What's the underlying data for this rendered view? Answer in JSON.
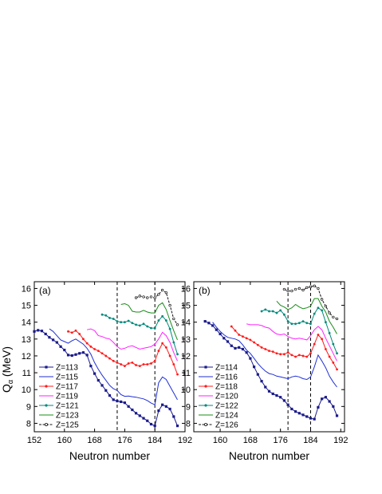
{
  "figure": {
    "ylabel": "Q",
    "ylabel_sub": "α",
    "ylabel_unit": " (MeV)"
  },
  "chart_data": [
    {
      "type": "line",
      "panel_label": "(a)",
      "xlabel": "Neutron number",
      "ylabel": "Qα (MeV)",
      "xlim": [
        152,
        192
      ],
      "ylim": [
        7.5,
        16.4
      ],
      "xticks": [
        152,
        160,
        168,
        176,
        184,
        192
      ],
      "yticks": [
        8,
        9,
        10,
        11,
        12,
        13,
        14,
        15,
        16
      ],
      "vlines": [
        174,
        184
      ],
      "legend_position": "bottom-left",
      "series": [
        {
          "name": "Z=113",
          "color": "#1a1a8c",
          "marker": "square",
          "x": [
            152,
            153,
            154,
            155,
            156,
            157,
            158,
            159,
            160,
            161,
            162,
            163,
            164,
            165,
            166,
            167,
            168,
            169,
            170,
            171,
            172,
            173,
            174,
            175,
            176,
            177,
            178,
            179,
            180,
            181,
            182,
            183,
            184,
            185,
            186,
            187,
            188,
            189,
            190
          ],
          "y": [
            13.45,
            13.52,
            13.48,
            13.3,
            13.1,
            12.95,
            12.8,
            12.55,
            12.35,
            12.05,
            12.02,
            12.08,
            12.15,
            12.2,
            12.05,
            11.4,
            10.95,
            10.55,
            10.25,
            9.95,
            9.65,
            9.4,
            9.32,
            9.28,
            9.22,
            9.0,
            8.8,
            8.6,
            8.45,
            8.3,
            8.15,
            7.95,
            7.85,
            8.75,
            9.1,
            9.0,
            8.85,
            8.4,
            7.85
          ]
        },
        {
          "name": "Z=115",
          "color": "#1f2fd6",
          "x": [
            156,
            157,
            158,
            159,
            160,
            161,
            162,
            163,
            164,
            165,
            166,
            167,
            168,
            169,
            170,
            171,
            172,
            173,
            174,
            175,
            176,
            177,
            178,
            179,
            180,
            181,
            182,
            183,
            184,
            185,
            186,
            187,
            188,
            189,
            190
          ],
          "y": [
            13.6,
            13.45,
            13.2,
            12.95,
            12.85,
            12.75,
            12.9,
            13.0,
            12.85,
            12.7,
            12.45,
            12.1,
            11.6,
            11.2,
            10.85,
            10.55,
            10.25,
            10.05,
            9.95,
            9.7,
            9.6,
            9.62,
            9.58,
            9.55,
            9.5,
            9.45,
            9.35,
            9.2,
            9.1,
            10.4,
            10.75,
            10.6,
            10.2,
            9.8,
            9.4
          ]
        },
        {
          "name": "Z=117",
          "color": "#ff1a1a",
          "marker": "dot",
          "x": [
            161,
            162,
            163,
            164,
            165,
            166,
            167,
            168,
            169,
            170,
            171,
            172,
            173,
            174,
            175,
            176,
            177,
            178,
            179,
            180,
            181,
            182,
            183,
            184,
            185,
            186,
            187,
            188,
            189,
            190
          ],
          "y": [
            13.45,
            13.38,
            13.5,
            13.3,
            13.0,
            12.75,
            12.55,
            12.4,
            12.3,
            12.15,
            12.0,
            11.85,
            11.7,
            11.6,
            11.5,
            11.4,
            11.55,
            11.6,
            11.45,
            11.4,
            11.5,
            11.5,
            11.55,
            11.7,
            12.3,
            12.75,
            12.5,
            12.0,
            11.5,
            10.9
          ]
        },
        {
          "name": "Z=119",
          "color": "#ff22ff",
          "x": [
            166,
            167,
            168,
            169,
            170,
            171,
            172,
            173,
            174,
            175,
            176,
            177,
            178,
            179,
            180,
            181,
            182,
            183,
            184,
            185,
            186,
            187,
            188,
            189,
            190
          ],
          "y": [
            13.55,
            13.6,
            13.5,
            13.2,
            13.15,
            13.05,
            13.0,
            12.8,
            12.55,
            12.4,
            12.45,
            12.55,
            12.6,
            12.5,
            12.4,
            12.45,
            12.5,
            12.55,
            12.7,
            13.0,
            13.4,
            13.2,
            12.8,
            12.2,
            11.7
          ]
        },
        {
          "name": "Z=121",
          "color": "#00897b",
          "marker": "dot",
          "x": [
            170,
            171,
            172,
            173,
            174,
            175,
            176,
            177,
            178,
            179,
            180,
            181,
            182,
            183,
            184,
            185,
            186,
            187,
            188,
            189,
            190
          ],
          "y": [
            14.45,
            14.4,
            14.25,
            14.2,
            14.05,
            14.0,
            14.0,
            14.08,
            13.95,
            13.85,
            13.8,
            13.9,
            13.75,
            13.65,
            13.65,
            14.1,
            14.35,
            14.1,
            13.6,
            12.8,
            12.1
          ]
        },
        {
          "name": "Z=123",
          "color": "#1a8c1a",
          "x": [
            175,
            176,
            177,
            178,
            179,
            180,
            181,
            182,
            183,
            184,
            185,
            186,
            187,
            188,
            189,
            190
          ],
          "y": [
            15.05,
            15.1,
            15.0,
            14.65,
            14.6,
            14.6,
            14.7,
            14.6,
            14.55,
            14.55,
            15.0,
            15.15,
            14.75,
            14.1,
            13.5,
            12.95
          ]
        },
        {
          "name": "Z=125",
          "color": "#111111",
          "marker": "open-dot",
          "x": [
            179,
            180,
            181,
            182,
            183,
            184,
            185,
            186,
            187,
            188,
            189,
            190
          ],
          "y": [
            15.45,
            15.55,
            15.5,
            15.45,
            15.5,
            15.45,
            15.65,
            15.9,
            15.75,
            15.0,
            14.2,
            13.85
          ]
        }
      ]
    },
    {
      "type": "line",
      "panel_label": "(b)",
      "xlabel": "Neutron number",
      "ylabel": "Qα (MeV)",
      "xlim": [
        153,
        193
      ],
      "ylim": [
        7.5,
        16.4
      ],
      "xticks": [
        160,
        168,
        176,
        184,
        192
      ],
      "yticks": [
        8,
        9,
        10,
        11,
        12,
        13,
        14,
        15,
        16
      ],
      "vlines": [
        178,
        184
      ],
      "legend_position": "bottom-left",
      "series": [
        {
          "name": "Z=114",
          "color": "#1a1a8c",
          "marker": "square",
          "x": [
            156,
            157,
            158,
            159,
            160,
            161,
            162,
            163,
            164,
            165,
            166,
            167,
            168,
            169,
            170,
            171,
            172,
            173,
            174,
            175,
            176,
            177,
            178,
            179,
            180,
            181,
            182,
            183,
            184,
            185,
            186,
            187,
            188,
            189,
            190,
            191
          ],
          "y": [
            14.05,
            13.95,
            13.8,
            13.55,
            13.3,
            13.05,
            12.85,
            12.6,
            12.45,
            12.5,
            12.4,
            12.2,
            11.85,
            11.35,
            10.9,
            10.5,
            10.15,
            9.9,
            9.75,
            9.65,
            9.55,
            9.35,
            9.1,
            8.85,
            8.7,
            8.6,
            8.5,
            8.4,
            8.3,
            8.25,
            8.95,
            9.45,
            9.55,
            9.3,
            9.0,
            8.45
          ]
        },
        {
          "name": "Z=116",
          "color": "#1f2fd6",
          "x": [
            158,
            159,
            160,
            161,
            162,
            163,
            164,
            165,
            166,
            167,
            168,
            169,
            170,
            171,
            172,
            173,
            174,
            175,
            176,
            177,
            178,
            179,
            180,
            181,
            182,
            183,
            184,
            185,
            186,
            187,
            188,
            189,
            190,
            191
          ],
          "y": [
            14.0,
            13.7,
            13.45,
            13.25,
            13.1,
            13.05,
            13.0,
            12.9,
            12.65,
            12.35,
            12.15,
            11.85,
            11.55,
            11.3,
            11.1,
            10.95,
            10.9,
            10.8,
            10.75,
            10.7,
            10.65,
            10.75,
            10.8,
            10.75,
            10.65,
            10.6,
            10.75,
            11.35,
            12.05,
            11.7,
            11.3,
            10.8,
            10.45,
            10.15
          ]
        },
        {
          "name": "Z=118",
          "color": "#ff1a1a",
          "marker": "dot",
          "x": [
            163,
            164,
            165,
            166,
            167,
            168,
            169,
            170,
            171,
            172,
            173,
            174,
            175,
            176,
            177,
            178,
            179,
            180,
            181,
            182,
            183,
            184,
            185,
            186,
            187,
            188,
            189,
            190,
            191
          ],
          "y": [
            13.75,
            13.5,
            13.25,
            13.15,
            13.05,
            12.95,
            12.8,
            12.65,
            12.5,
            12.4,
            12.3,
            12.25,
            12.15,
            12.1,
            12.1,
            12.2,
            12.05,
            11.95,
            12.05,
            12.0,
            11.95,
            12.15,
            12.7,
            13.25,
            13.0,
            12.4,
            11.95,
            11.6,
            11.2
          ]
        },
        {
          "name": "Z=120",
          "color": "#ff22ff",
          "x": [
            167,
            168,
            169,
            170,
            171,
            172,
            173,
            174,
            175,
            176,
            177,
            178,
            179,
            180,
            181,
            182,
            183,
            184,
            185,
            186,
            187,
            188,
            189,
            190,
            191
          ],
          "y": [
            13.9,
            13.85,
            13.85,
            13.85,
            13.8,
            13.7,
            13.65,
            13.45,
            13.3,
            13.25,
            13.3,
            13.15,
            13.05,
            13.0,
            13.05,
            13.0,
            12.95,
            13.2,
            13.55,
            13.75,
            13.55,
            13.05,
            12.6,
            12.15,
            11.7
          ]
        },
        {
          "name": "Z=122",
          "color": "#00897b",
          "marker": "dot",
          "x": [
            171,
            172,
            173,
            174,
            175,
            176,
            177,
            178,
            179,
            180,
            181,
            182,
            183,
            184,
            185,
            186,
            187,
            188,
            189,
            190,
            191
          ],
          "y": [
            14.65,
            14.75,
            14.65,
            14.65,
            14.55,
            14.7,
            14.45,
            14.05,
            13.9,
            13.9,
            13.95,
            14.05,
            13.95,
            13.9,
            14.5,
            14.85,
            14.7,
            14.0,
            13.35,
            12.7,
            12.15
          ]
        },
        {
          "name": "Z=124",
          "color": "#1a8c1a",
          "x": [
            175,
            176,
            177,
            178,
            179,
            180,
            181,
            182,
            183,
            184,
            185,
            186,
            187,
            188,
            189,
            190,
            191
          ],
          "y": [
            15.25,
            15.0,
            14.9,
            14.75,
            14.85,
            15.05,
            14.9,
            14.8,
            14.85,
            14.95,
            15.4,
            15.4,
            14.95,
            14.6,
            14.05,
            13.7,
            13.3
          ]
        },
        {
          "name": "Z=126",
          "color": "#111111",
          "marker": "open-dot",
          "x": [
            177,
            178,
            179,
            180,
            181,
            182,
            183,
            184,
            185,
            186,
            187,
            188,
            189,
            190,
            191
          ],
          "y": [
            15.95,
            15.85,
            15.85,
            15.95,
            16.0,
            15.9,
            16.05,
            16.1,
            16.15,
            16.0,
            15.35,
            14.95,
            14.55,
            14.3,
            14.2
          ]
        }
      ]
    }
  ]
}
